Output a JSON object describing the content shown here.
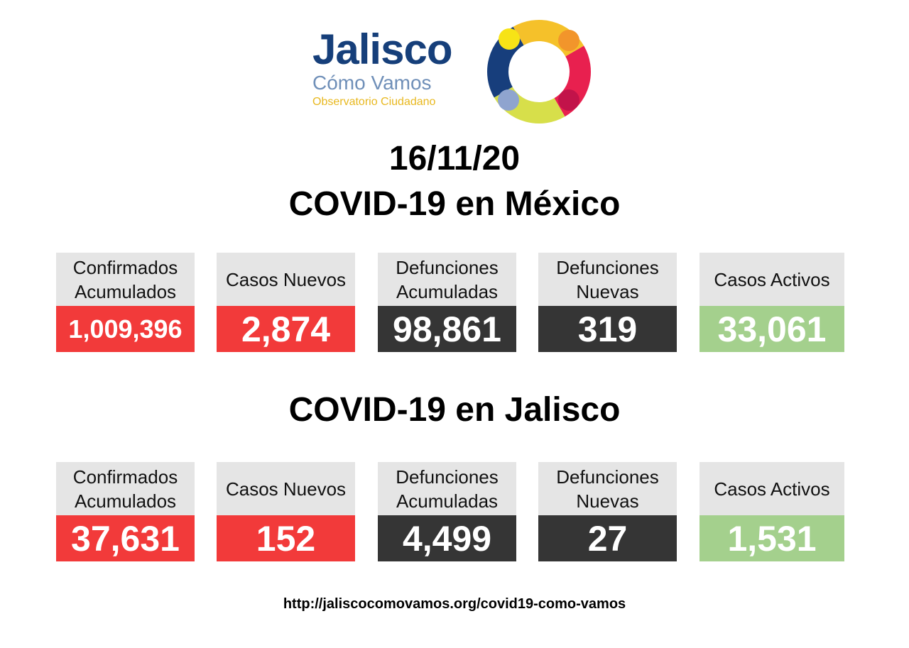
{
  "logo": {
    "title": "Jalisco",
    "subtitle": "Cómo Vamos",
    "tagline": "Observatorio Ciudadano"
  },
  "date": "16/11/20",
  "mexico": {
    "title": "COVID-19 en México",
    "cards": [
      {
        "label": "Confirmados\nAcumulados",
        "value": "1,009,396"
      },
      {
        "label": "Casos Nuevos",
        "value": "2,874"
      },
      {
        "label": "Defunciones\nAcumuladas",
        "value": "98,861"
      },
      {
        "label": "Defunciones\nNuevas",
        "value": "319"
      },
      {
        "label": "Casos Activos",
        "value": "33,061"
      }
    ]
  },
  "jalisco": {
    "title": "COVID-19 en Jalisco",
    "cards": [
      {
        "label": "Confirmados\nAcumulados",
        "value": "37,631"
      },
      {
        "label": "Casos Nuevos",
        "value": "152"
      },
      {
        "label": "Defunciones\nAcumuladas",
        "value": "4,499"
      },
      {
        "label": "Defunciones\nNuevas",
        "value": "27"
      },
      {
        "label": "Casos Activos",
        "value": "1,531"
      }
    ]
  },
  "footer": {
    "url": "http://jaliscocomovamos.org/covid19-como-vamos"
  },
  "colors": {
    "red": "#f23a3a",
    "dark": "#353535",
    "green": "#a4d08d",
    "label_bg": "#e5e5e5",
    "brand_blue": "#163f7a"
  }
}
